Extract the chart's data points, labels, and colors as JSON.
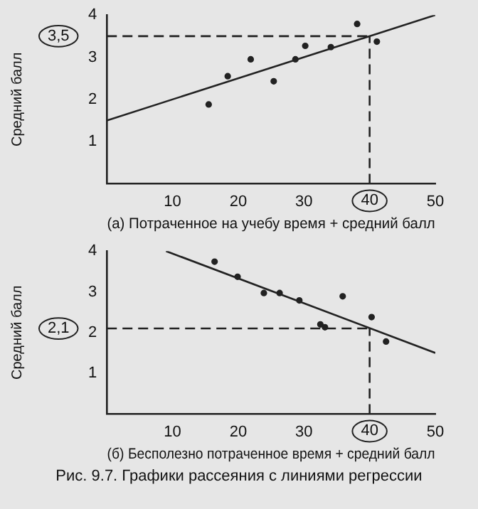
{
  "chart_data": [
    {
      "type": "scatter",
      "xlabel": "(а) Потраченное на учебу время + средний балл",
      "ylabel": "Средний балл",
      "xlim": [
        0,
        50
      ],
      "ylim": [
        0,
        4
      ],
      "xticks": [
        10,
        20,
        30,
        50
      ],
      "yticks": [
        1,
        2,
        3,
        4
      ],
      "grid": false,
      "legend": false,
      "series": [
        {
          "type": "scatter",
          "color": "#222222",
          "marker": "circle",
          "x": [
            15.5,
            18.4,
            21.9,
            25.4,
            28.7,
            30.2,
            34.1,
            38.1,
            41.1
          ],
          "values": [
            1.88,
            2.55,
            2.95,
            2.43,
            2.95,
            3.27,
            3.24,
            3.79,
            3.37
          ]
        },
        {
          "type": "line",
          "color": "#222222",
          "marker": "none",
          "x": [
            0,
            50
          ],
          "values": [
            1.5,
            4.0
          ]
        }
      ],
      "ref_lines": [
        {
          "axis": "y",
          "value": 3.5,
          "label": "3,5",
          "line_style": "dashed"
        },
        {
          "axis": "x",
          "value": 40,
          "label": "40",
          "line_style": "dashed"
        }
      ]
    },
    {
      "type": "scatter",
      "xlabel": "(б) Бесполезно потраченное время + средний балл",
      "ylabel": "Средний балл",
      "xlim": [
        0,
        50
      ],
      "ylim": [
        0,
        4
      ],
      "xticks": [
        10,
        20,
        30,
        50
      ],
      "yticks": [
        1,
        2,
        3,
        4
      ],
      "grid": false,
      "legend": false,
      "series": [
        {
          "type": "scatter",
          "color": "#222222",
          "marker": "circle",
          "x": [
            16.4,
            19.9,
            23.9,
            26.3,
            29.3,
            32.5,
            33.2,
            35.9,
            40.3,
            42.5
          ],
          "values": [
            3.74,
            3.37,
            2.97,
            2.97,
            2.79,
            2.2,
            2.13,
            2.89,
            2.38,
            1.78
          ]
        },
        {
          "type": "line",
          "color": "#222222",
          "marker": "none",
          "x": [
            9,
            50
          ],
          "values": [
            4.0,
            1.5
          ]
        }
      ],
      "ref_lines": [
        {
          "axis": "y",
          "value": 2.1,
          "label": "2,1",
          "line_style": "dashed"
        },
        {
          "axis": "x",
          "value": 40,
          "label": "40",
          "line_style": "dashed"
        }
      ],
      "annotations": [
        "Рис. 9.7. Графики рассеяния с линиями регрессии"
      ]
    }
  ]
}
